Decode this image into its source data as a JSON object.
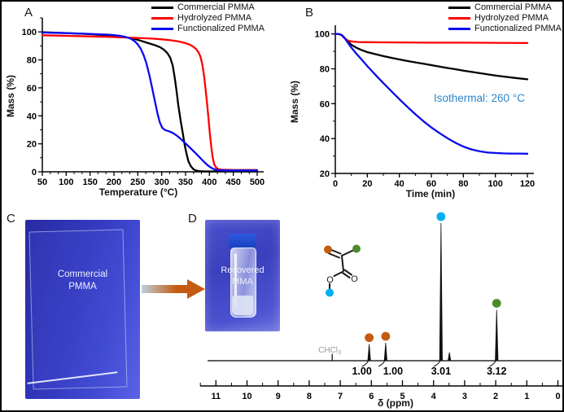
{
  "panels": {
    "a": "A",
    "b": "B",
    "c": "C",
    "d": "D"
  },
  "colors": {
    "commercial": "#000000",
    "hydrolyzed": "#fe0000",
    "functionalized": "#0a0af0",
    "annotation": "#2e86c8",
    "dot_orange": "#c55a11",
    "dot_green": "#4e8a2c",
    "dot_cyan": "#00b0f0",
    "solvent_gray": "#999999",
    "arrow_from": "#bdd0dd",
    "arrow_to": "#c55a11"
  },
  "chart_data": [
    {
      "id": "tga-ramp",
      "type": "line",
      "panel": "A",
      "xlabel": "Temperature (°C)",
      "ylabel": "Mass (%)",
      "xlim": [
        50,
        500
      ],
      "ylim": [
        0,
        110
      ],
      "xticks": [
        50,
        100,
        150,
        200,
        250,
        300,
        350,
        400,
        450,
        500
      ],
      "yticks": [
        0,
        20,
        40,
        60,
        80,
        100
      ],
      "x_minor_step": 16.667,
      "y_minor_step": 10,
      "grid": false,
      "legend_position": "top-right",
      "series": [
        {
          "name": "Commercial PMMA",
          "color_key": "commercial",
          "points": [
            [
              50,
              99.8
            ],
            [
              100,
              99.2
            ],
            [
              150,
              98.4
            ],
            [
              200,
              97.2
            ],
            [
              220,
              96.4
            ],
            [
              240,
              95.2
            ],
            [
              255,
              93.8
            ],
            [
              270,
              92.2
            ],
            [
              285,
              90.6
            ],
            [
              297,
              89
            ],
            [
              305,
              87.2
            ],
            [
              312,
              84.8
            ],
            [
              318,
              81.5
            ],
            [
              323,
              76
            ],
            [
              327,
              68
            ],
            [
              331,
              58
            ],
            [
              335,
              47
            ],
            [
              340,
              36
            ],
            [
              344,
              28
            ],
            [
              348,
              19.5
            ],
            [
              352,
              13
            ],
            [
              356,
              7.5
            ],
            [
              361,
              4
            ],
            [
              366,
              2
            ],
            [
              371,
              1
            ],
            [
              377,
              0.5
            ],
            [
              390,
              0.3
            ],
            [
              440,
              0.3
            ],
            [
              500,
              0.3
            ]
          ]
        },
        {
          "name": "Hydrolyzed PMMA",
          "color_key": "hydrolyzed",
          "points": [
            [
              50,
              97.6
            ],
            [
              100,
              97.2
            ],
            [
              150,
              96.8
            ],
            [
              200,
              96.3
            ],
            [
              250,
              95.7
            ],
            [
              280,
              95.2
            ],
            [
              300,
              94.7
            ],
            [
              320,
              94
            ],
            [
              335,
              93.2
            ],
            [
              348,
              92.2
            ],
            [
              358,
              91
            ],
            [
              366,
              89.5
            ],
            [
              372,
              87.8
            ],
            [
              377,
              85.5
            ],
            [
              381,
              82.5
            ],
            [
              385,
              77
            ],
            [
              389,
              68
            ],
            [
              392,
              59
            ],
            [
              395,
              49
            ],
            [
              398,
              38
            ],
            [
              401,
              27
            ],
            [
              404,
              17.5
            ],
            [
              407,
              10
            ],
            [
              410,
              5.5
            ],
            [
              414,
              3
            ],
            [
              418,
              2
            ],
            [
              425,
              1.5
            ],
            [
              450,
              1.3
            ],
            [
              500,
              1.3
            ]
          ]
        },
        {
          "name": "Functionalized PMMA",
          "color_key": "functionalized",
          "points": [
            [
              50,
              99.5
            ],
            [
              100,
              99.1
            ],
            [
              150,
              98.6
            ],
            [
              190,
              98
            ],
            [
              210,
              97.3
            ],
            [
              225,
              96.4
            ],
            [
              235,
              95.2
            ],
            [
              244,
              93.2
            ],
            [
              250,
              91
            ],
            [
              256,
              88
            ],
            [
              262,
              83.5
            ],
            [
              268,
              77.5
            ],
            [
              274,
              69.5
            ],
            [
              280,
              60
            ],
            [
              286,
              50
            ],
            [
              291,
              42
            ],
            [
              296,
              35.5
            ],
            [
              301,
              31.5
            ],
            [
              307,
              29.8
            ],
            [
              315,
              29
            ],
            [
              323,
              27.8
            ],
            [
              331,
              26
            ],
            [
              339,
              23.8
            ],
            [
              346,
              21.5
            ],
            [
              354,
              19
            ],
            [
              363,
              16
            ],
            [
              372,
              13
            ],
            [
              381,
              9.8
            ],
            [
              389,
              7
            ],
            [
              396,
              4.8
            ],
            [
              403,
              3
            ],
            [
              410,
              1.8
            ],
            [
              418,
              1.2
            ],
            [
              430,
              1
            ],
            [
              470,
              1
            ],
            [
              500,
              1
            ]
          ]
        }
      ]
    },
    {
      "id": "tga-isothermal",
      "type": "line",
      "panel": "B",
      "xlabel": "Time (min)",
      "ylabel": "Mass (%)",
      "xlim": [
        0,
        120
      ],
      "ylim": [
        20,
        105
      ],
      "xticks": [
        0,
        20,
        40,
        60,
        80,
        100,
        120
      ],
      "yticks": [
        20,
        40,
        60,
        80,
        100
      ],
      "x_minor_step": 10,
      "y_minor_step": 10,
      "grid": false,
      "legend_position": "top-right",
      "annotation": {
        "text": "Isothermal: 260 °C"
      },
      "series": [
        {
          "name": "Commercial PMMA",
          "color_key": "commercial",
          "points": [
            [
              0,
              100
            ],
            [
              2,
              100
            ],
            [
              4,
              99.4
            ],
            [
              6,
              97.6
            ],
            [
              8,
              95.6
            ],
            [
              10,
              93.8
            ],
            [
              13,
              92.2
            ],
            [
              16,
              90.9
            ],
            [
              20,
              89.6
            ],
            [
              25,
              88.4
            ],
            [
              30,
              87.3
            ],
            [
              35,
              86.3
            ],
            [
              40,
              85.4
            ],
            [
              45,
              84.5
            ],
            [
              50,
              83.7
            ],
            [
              55,
              82.9
            ],
            [
              60,
              82.1
            ],
            [
              65,
              81.3
            ],
            [
              70,
              80.5
            ],
            [
              75,
              79.8
            ],
            [
              80,
              79
            ],
            [
              85,
              78.3
            ],
            [
              90,
              77.6
            ],
            [
              95,
              76.9
            ],
            [
              100,
              76.2
            ],
            [
              105,
              75.6
            ],
            [
              110,
              75
            ],
            [
              115,
              74.5
            ],
            [
              120,
              74
            ]
          ]
        },
        {
          "name": "Hydrolyzed PMMA",
          "color_key": "hydrolyzed",
          "points": [
            [
              0,
              100
            ],
            [
              2,
              100
            ],
            [
              4,
              99.2
            ],
            [
              6,
              97.4
            ],
            [
              8,
              96.2
            ],
            [
              10,
              95.7
            ],
            [
              14,
              95.4
            ],
            [
              20,
              95.3
            ],
            [
              30,
              95.2
            ],
            [
              45,
              95.1
            ],
            [
              60,
              95
            ],
            [
              80,
              95
            ],
            [
              100,
              94.9
            ],
            [
              120,
              94.8
            ]
          ]
        },
        {
          "name": "Functionalized PMMA",
          "color_key": "functionalized",
          "points": [
            [
              0,
              100
            ],
            [
              2,
              100
            ],
            [
              4,
              99.4
            ],
            [
              6,
              97.4
            ],
            [
              8,
              94.8
            ],
            [
              10,
              92.2
            ],
            [
              13,
              88.8
            ],
            [
              16,
              85.8
            ],
            [
              20,
              81.6
            ],
            [
              25,
              76.6
            ],
            [
              30,
              71.8
            ],
            [
              35,
              67.2
            ],
            [
              40,
              62.6
            ],
            [
              45,
              58.2
            ],
            [
              50,
              54
            ],
            [
              55,
              50
            ],
            [
              60,
              46.4
            ],
            [
              65,
              43.2
            ],
            [
              70,
              40.2
            ],
            [
              75,
              37.6
            ],
            [
              80,
              35.4
            ],
            [
              85,
              33.8
            ],
            [
              90,
              32.7
            ],
            [
              95,
              32
            ],
            [
              100,
              31.7
            ],
            [
              105,
              31.5
            ],
            [
              110,
              31.4
            ],
            [
              115,
              31.4
            ],
            [
              120,
              31.3
            ]
          ]
        }
      ]
    },
    {
      "id": "nmr-spectrum",
      "type": "nmr",
      "panel": "D",
      "xlabel": "δ (ppm)",
      "xlim": [
        11.6,
        -0.35
      ],
      "xticks": [
        11,
        10,
        9,
        8,
        7,
        6,
        5,
        4,
        3,
        2,
        1,
        0
      ],
      "x_minor_step": 0.5,
      "solvent": {
        "text": "CHCl",
        "sub": "3",
        "ppm": 7.26,
        "height": 5
      },
      "peaks": [
        {
          "ppm": 6.07,
          "height": 12,
          "dot": "dot_orange",
          "integration": "1.00",
          "label_dx": -9
        },
        {
          "ppm": 5.54,
          "height": 13,
          "dot": "dot_orange",
          "integration": "1.00",
          "label_dx": 9
        },
        {
          "ppm": 3.76,
          "height": 100,
          "dot": "dot_cyan",
          "integration": "3.01",
          "label_dx": 0
        },
        {
          "ppm": 3.49,
          "height": 6
        },
        {
          "ppm": 1.97,
          "height": 37,
          "dot": "dot_green",
          "integration": "3.12",
          "label_dx": 0
        }
      ]
    }
  ],
  "photos": {
    "c_caption_line1": "Commercial",
    "c_caption_line2": "PMMA",
    "d_caption_line1": "Recovered",
    "d_caption_line2": "MMA"
  },
  "molecule": {
    "o_ester": "O",
    "o_carbonyl": "O"
  }
}
